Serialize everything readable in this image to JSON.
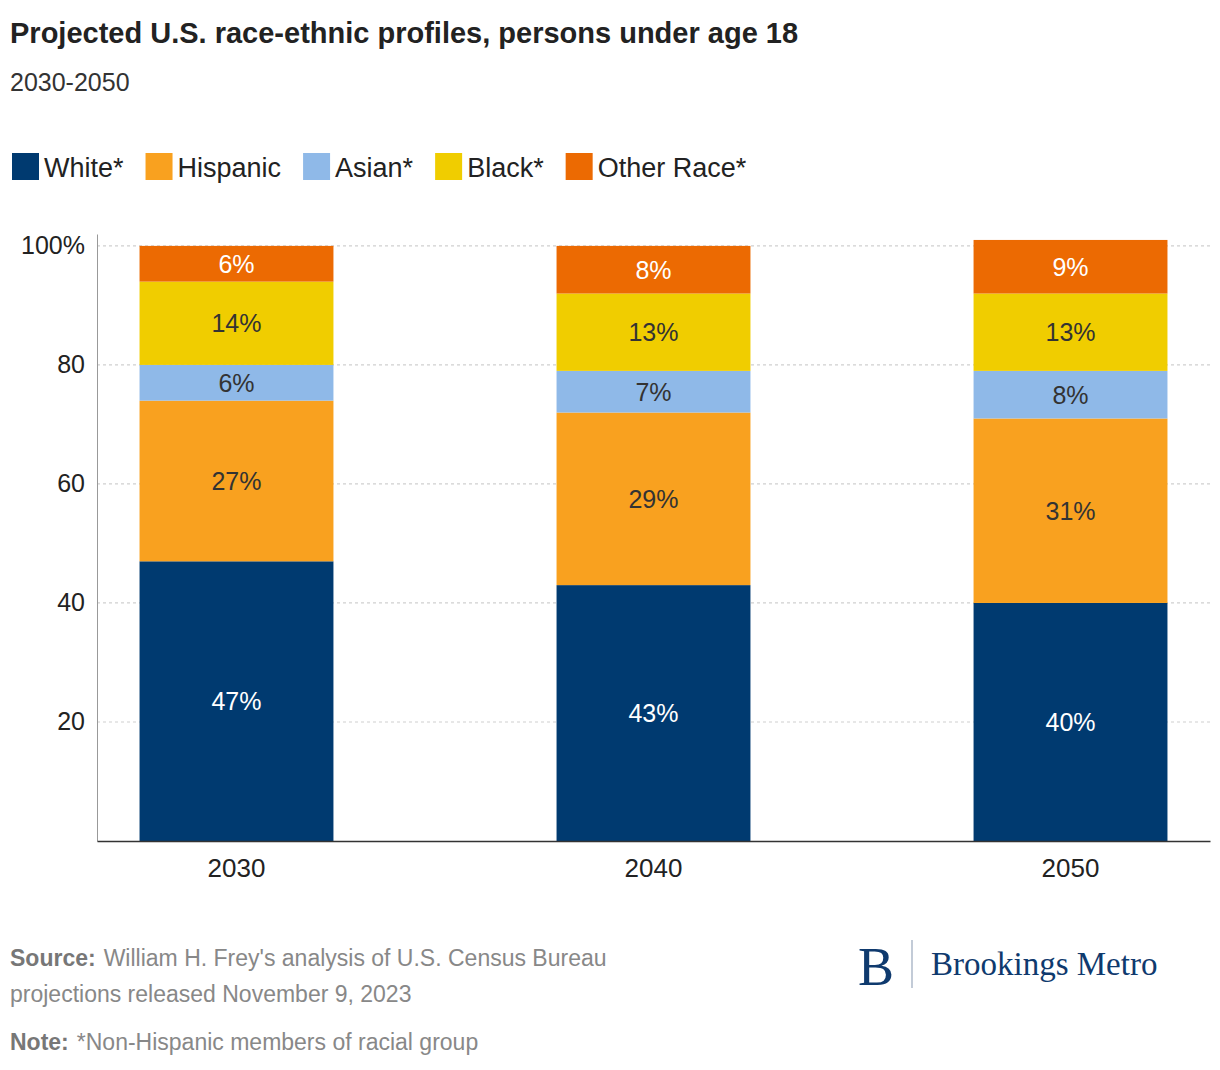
{
  "chart_data": {
    "type": "bar",
    "title": "Projected U.S. race-ethnic profiles, persons under age 18",
    "subtitle": "2030-2050",
    "categories": [
      "2030",
      "2040",
      "2050"
    ],
    "series": [
      {
        "name": "White*",
        "color": "#003a70",
        "values": [
          47,
          43,
          40
        ],
        "value_labels": [
          "47%",
          "43%",
          "40%"
        ]
      },
      {
        "name": "Hispanic",
        "color": "#f9a11f",
        "values": [
          27,
          29,
          31
        ],
        "value_labels": [
          "27%",
          "29%",
          "31%"
        ]
      },
      {
        "name": "Asian*",
        "color": "#8fb9e8",
        "values": [
          6,
          7,
          8
        ],
        "value_labels": [
          "6%",
          "7%",
          "8%"
        ]
      },
      {
        "name": "Black*",
        "color": "#f0cd00",
        "values": [
          14,
          13,
          13
        ],
        "value_labels": [
          "14%",
          "13%",
          "13%"
        ]
      },
      {
        "name": "Other Race*",
        "color": "#ec6a02",
        "values": [
          6,
          8,
          9
        ],
        "value_labels": [
          "6%",
          "8%",
          "9%"
        ]
      }
    ],
    "ylim": [
      0,
      102
    ],
    "yticks": [
      20,
      40,
      60,
      80,
      {
        "value": 100,
        "label": "100%"
      }
    ],
    "stacked": true,
    "data_labels": true,
    "grid": true,
    "legend": "top",
    "source_label": "Source:",
    "source": [
      "William H. Frey's analysis of U.S. Census Bureau",
      "projections released November 9, 2023"
    ],
    "note_label": "Note:",
    "note": "*Non-Hispanic members of racial group",
    "brand_mark": "B",
    "brand": "Brookings Metro"
  }
}
